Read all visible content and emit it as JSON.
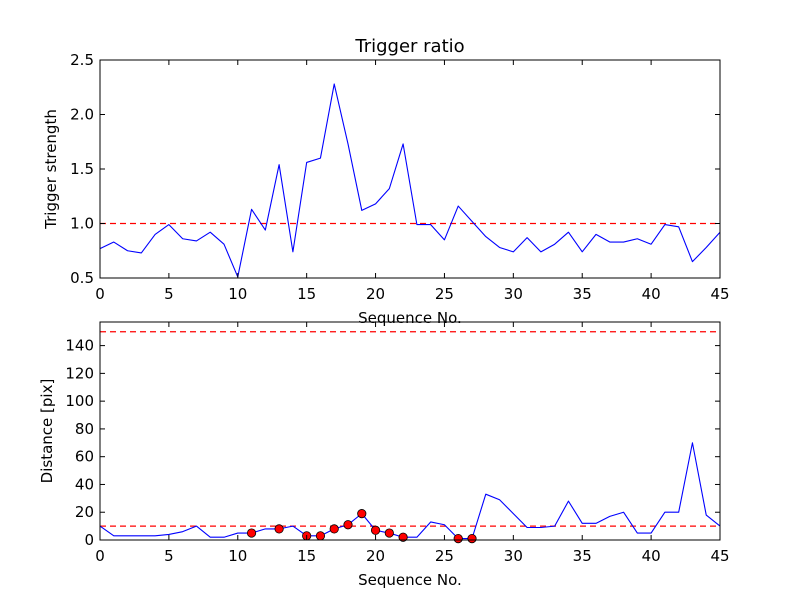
{
  "chart_data": [
    {
      "type": "line",
      "title": "Trigger ratio",
      "xlabel": "Sequence No.",
      "ylabel": "Trigger strength",
      "xlim": [
        0,
        45
      ],
      "ylim": [
        0.5,
        2.5
      ],
      "xticks": [
        0,
        5,
        10,
        15,
        20,
        25,
        30,
        35,
        40,
        45
      ],
      "yticks": [
        0.5,
        1.0,
        1.5,
        2.0,
        2.5
      ],
      "ytick_labels": [
        "0.5",
        "1.0",
        "1.5",
        "2.0",
        "2.5"
      ],
      "grid": false,
      "series": [
        {
          "color": "#0000ff",
          "x": [
            0,
            1,
            2,
            3,
            4,
            5,
            6,
            7,
            8,
            9,
            10,
            11,
            12,
            13,
            14,
            15,
            16,
            17,
            18,
            19,
            20,
            21,
            22,
            23,
            24,
            25,
            26,
            27,
            28,
            29,
            30,
            31,
            32,
            33,
            34,
            35,
            36,
            37,
            38,
            39,
            40,
            41,
            42,
            43,
            44,
            45
          ],
          "y": [
            0.77,
            0.83,
            0.75,
            0.73,
            0.9,
            0.99,
            0.86,
            0.84,
            0.92,
            0.81,
            0.51,
            1.13,
            0.94,
            1.54,
            0.74,
            1.56,
            1.6,
            2.28,
            1.73,
            1.12,
            1.18,
            1.32,
            1.73,
            0.99,
            0.99,
            0.85,
            1.16,
            1.02,
            0.88,
            0.78,
            0.74,
            0.87,
            0.74,
            0.81,
            0.92,
            0.74,
            0.9,
            0.83,
            0.83,
            0.86,
            0.81,
            0.99,
            0.97,
            0.65,
            0.78,
            0.92
          ]
        }
      ],
      "reference_lines": [
        {
          "y": 1.0,
          "color": "#ff0000",
          "style": "dashed"
        }
      ]
    },
    {
      "type": "line",
      "title": "",
      "xlabel": "Sequence No.",
      "ylabel": "Distance [pix]",
      "xlim": [
        0,
        45
      ],
      "ylim": [
        0,
        157
      ],
      "xticks": [
        0,
        5,
        10,
        15,
        20,
        25,
        30,
        35,
        40,
        45
      ],
      "yticks": [
        0,
        20,
        40,
        60,
        80,
        100,
        120,
        140
      ],
      "ytick_labels": [
        "0",
        "20",
        "40",
        "60",
        "80",
        "100",
        "120",
        "140"
      ],
      "grid": false,
      "series": [
        {
          "color": "#0000ff",
          "x": [
            0,
            1,
            2,
            3,
            4,
            5,
            6,
            7,
            8,
            9,
            10,
            11,
            12,
            13,
            14,
            15,
            16,
            17,
            18,
            19,
            20,
            21,
            22,
            23,
            24,
            25,
            26,
            27,
            28,
            29,
            30,
            31,
            32,
            33,
            34,
            35,
            36,
            37,
            38,
            39,
            40,
            41,
            42,
            43,
            44,
            45
          ],
          "y": [
            10,
            3,
            3,
            3,
            3,
            4,
            6,
            10,
            2,
            2,
            5,
            5,
            8,
            8,
            10,
            3,
            3,
            8,
            11,
            19,
            7,
            5,
            2,
            2,
            13,
            11,
            1,
            1,
            33,
            29,
            19,
            9,
            9,
            10,
            28,
            12,
            12,
            17,
            20,
            5,
            5,
            20,
            20,
            70,
            18,
            10
          ]
        }
      ],
      "markers": {
        "color": "#ff0000",
        "edge_color": "#000000",
        "x": [
          11,
          13,
          15,
          16,
          17,
          18,
          19,
          20,
          21,
          22,
          26,
          27
        ],
        "y": [
          5,
          8,
          3,
          3,
          8,
          11,
          19,
          7,
          5,
          2,
          1,
          1
        ]
      },
      "reference_lines": [
        {
          "y": 10,
          "color": "#ff0000",
          "style": "dashed"
        },
        {
          "y": 150,
          "color": "#ff0000",
          "style": "dashed"
        }
      ]
    }
  ]
}
